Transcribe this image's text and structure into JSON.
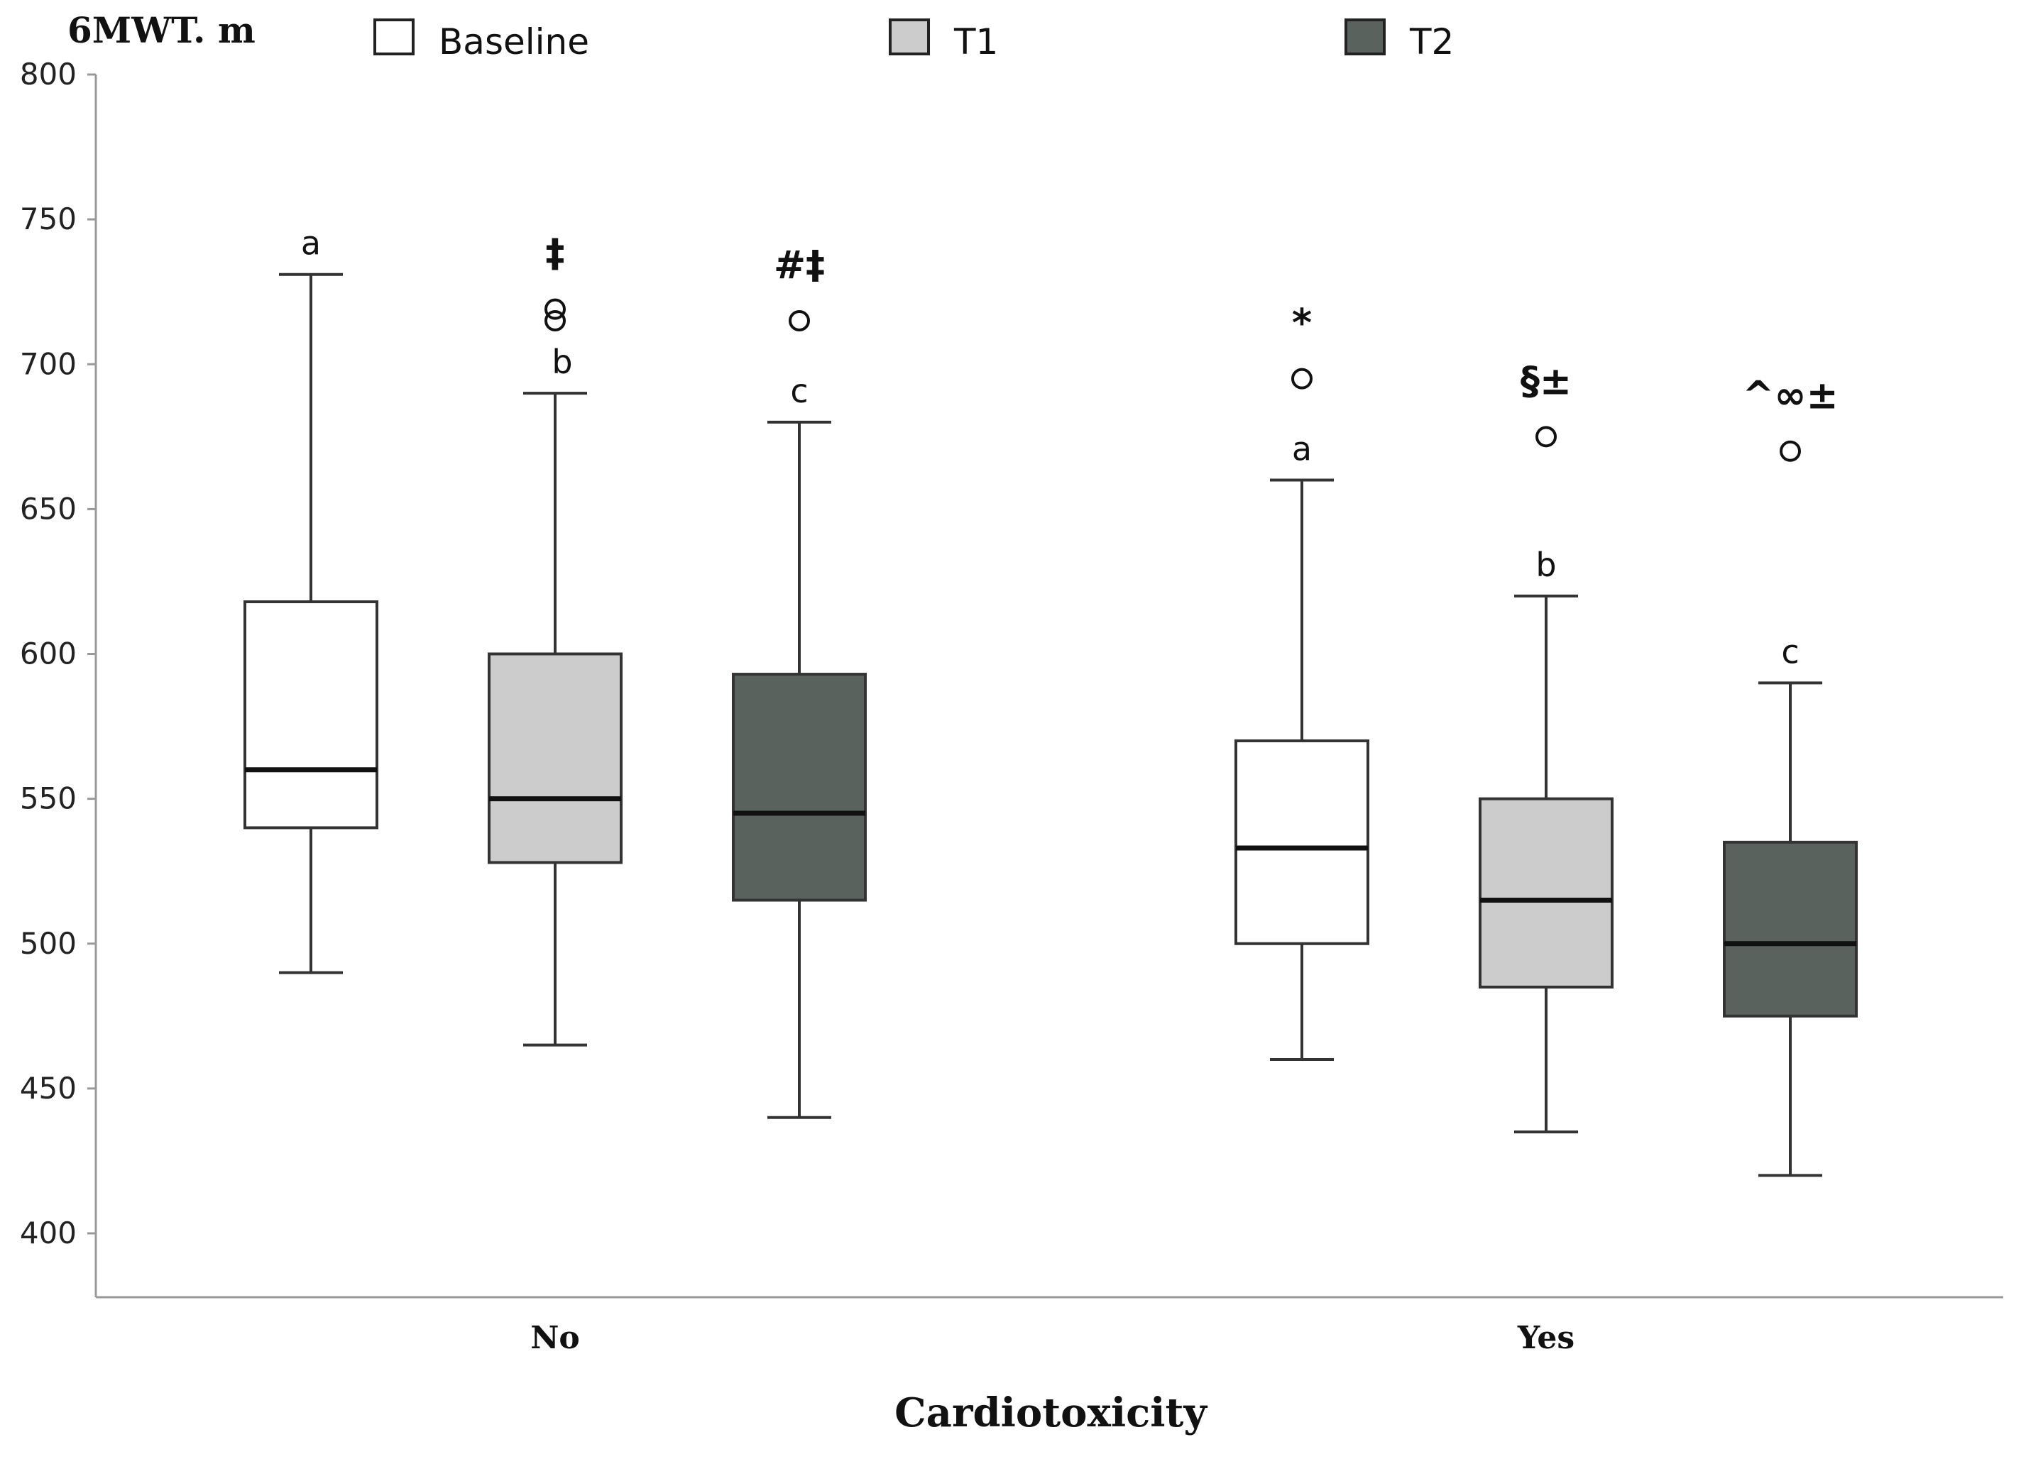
{
  "chart_data": {
    "type": "boxplot",
    "ylabel": "6MWT. m",
    "xlabel": "Cardiotoxicity",
    "ylim": [
      400,
      800
    ],
    "yticks": [
      400,
      450,
      500,
      550,
      600,
      650,
      700,
      750,
      800
    ],
    "categories": [
      "No",
      "Yes"
    ],
    "legend_position": "top",
    "series": [
      {
        "name": "Baseline",
        "color": "#ffffff",
        "boxes": [
          {
            "category": "No",
            "whisker_low": 490,
            "q1": 540,
            "median": 560,
            "q3": 618,
            "whisker_high": 731,
            "outliers": [],
            "letter": "a",
            "symbol": ""
          },
          {
            "category": "Yes",
            "whisker_low": 460,
            "q1": 500,
            "median": 533,
            "q3": 570,
            "whisker_high": 660,
            "outliers": [
              695
            ],
            "letter": "a",
            "symbol": "*"
          }
        ]
      },
      {
        "name": "T1",
        "color": "#cccccc",
        "boxes": [
          {
            "category": "No",
            "whisker_low": 465,
            "q1": 528,
            "median": 550,
            "q3": 600,
            "whisker_high": 690,
            "outliers": [
              715,
              719
            ],
            "letter": "b",
            "symbol": "‡"
          },
          {
            "category": "Yes",
            "whisker_low": 435,
            "q1": 485,
            "median": 515,
            "q3": 550,
            "whisker_high": 620,
            "outliers": [
              675
            ],
            "letter": "b",
            "symbol": "§±"
          }
        ]
      },
      {
        "name": "T2",
        "color": "#5a625e",
        "boxes": [
          {
            "category": "No",
            "whisker_low": 440,
            "q1": 515,
            "median": 545,
            "q3": 593,
            "whisker_high": 680,
            "outliers": [
              715
            ],
            "letter": "c",
            "symbol": "#‡"
          },
          {
            "category": "Yes",
            "whisker_low": 420,
            "q1": 475,
            "median": 500,
            "q3": 535,
            "whisker_high": 590,
            "outliers": [
              670
            ],
            "letter": "c",
            "symbol": "^∞±"
          }
        ]
      }
    ]
  }
}
